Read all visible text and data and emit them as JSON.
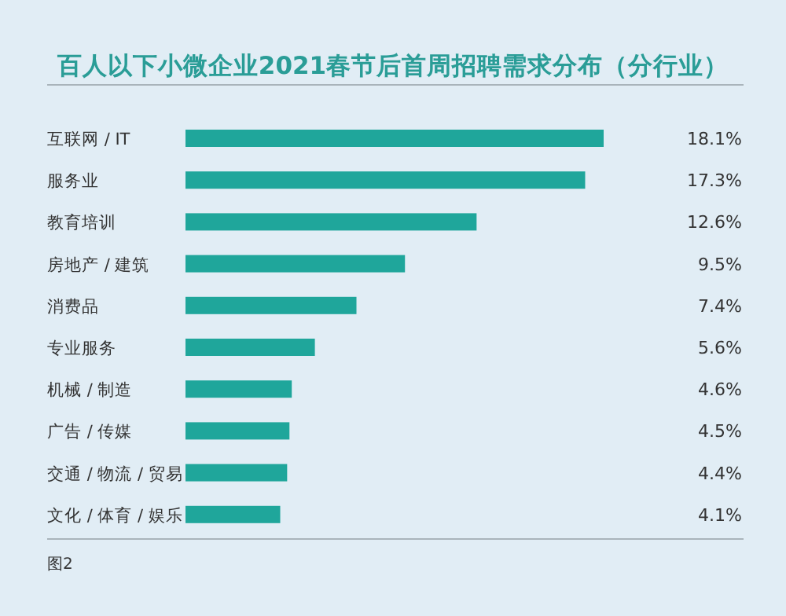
{
  "chart_data": {
    "type": "bar",
    "orientation": "horizontal",
    "title": "百人以下小微企业2021春节后首周招聘需求分布（分行业）",
    "categories": [
      "互联网 / IT",
      "服务业",
      "教育培训",
      "房地产 / 建筑",
      "消费品",
      "专业服务",
      "机械 / 制造",
      "广告 / 传媒",
      "交通 / 物流 / 贸易",
      "文化 / 体育 / 娱乐"
    ],
    "values": [
      18.1,
      17.3,
      12.6,
      9.5,
      7.4,
      5.6,
      4.6,
      4.5,
      4.4,
      4.1
    ],
    "value_labels": [
      "18.1%",
      "17.3%",
      "12.6%",
      "9.5%",
      "7.4%",
      "5.6%",
      "4.6%",
      "4.5%",
      "4.4%",
      "4.1%"
    ],
    "color": "#1fa69b",
    "annotations": [
      "图2"
    ]
  }
}
